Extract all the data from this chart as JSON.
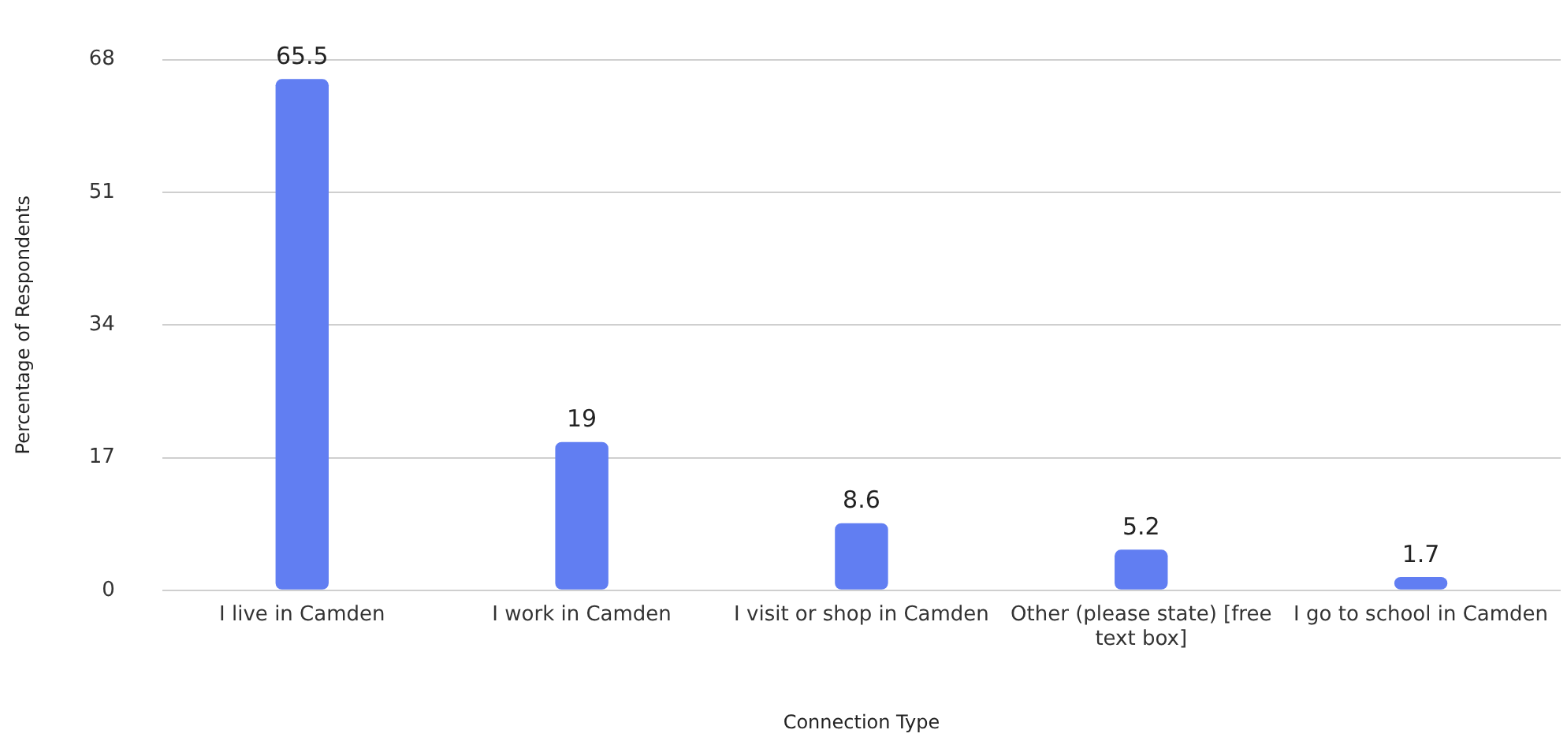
{
  "chart_data": {
    "type": "bar",
    "xlabel": "Connection Type",
    "ylabel": "Percentage of Respondents",
    "categories": [
      "I live in Camden",
      "I work in Camden",
      "I visit or shop in Camden",
      "Other (please state) [free text box]",
      "I go to school in Camden"
    ],
    "values": [
      65.5,
      19,
      8.6,
      5.2,
      1.7
    ],
    "color": "#617ef2",
    "ylim": [
      0,
      68
    ],
    "yticks": [
      0,
      17,
      34,
      51,
      68
    ],
    "grid": "y",
    "data_labels": true
  }
}
